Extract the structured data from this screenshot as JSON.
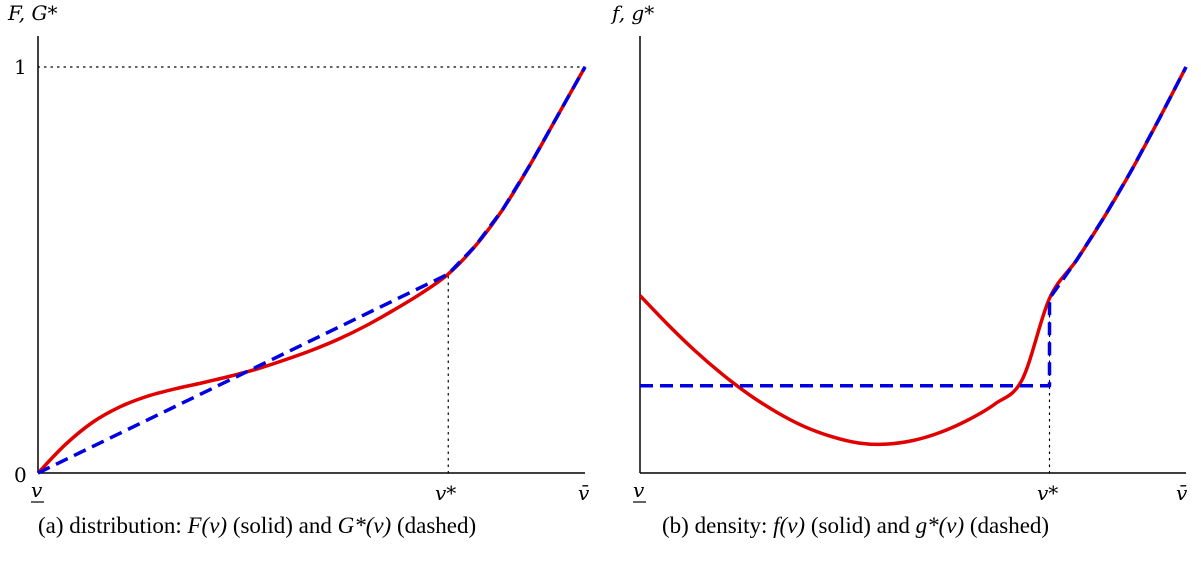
{
  "chart_data": [
    {
      "type": "line",
      "panel": "a",
      "ylabel": "F, G*",
      "x_tick_labels": [
        "v",
        "v*",
        "v̄"
      ],
      "y_tick_labels": [
        "0",
        "1"
      ],
      "xlim": [
        0,
        1
      ],
      "ylim": [
        0,
        1
      ],
      "v_star": 0.75,
      "reference_lines": [
        {
          "style": "dotted",
          "from": [
            0,
            1
          ],
          "to": [
            1,
            1
          ]
        },
        {
          "style": "dotted",
          "from": [
            0.75,
            0
          ],
          "to": [
            0.75,
            0.49
          ]
        }
      ],
      "series": [
        {
          "style": "solid",
          "color": "#e00000",
          "x": [
            0,
            0.05,
            0.1,
            0.15,
            0.2,
            0.25,
            0.3,
            0.35,
            0.4,
            0.45,
            0.5,
            0.55,
            0.6,
            0.65,
            0.7,
            0.75,
            0.8,
            0.85,
            0.9,
            0.95,
            1.0
          ],
          "y": [
            0,
            0.07,
            0.125,
            0.163,
            0.189,
            0.207,
            0.222,
            0.238,
            0.256,
            0.278,
            0.302,
            0.33,
            0.363,
            0.401,
            0.442,
            0.49,
            0.56,
            0.65,
            0.76,
            0.88,
            1.0
          ]
        },
        {
          "style": "dashed",
          "color": "#0000e0",
          "x": [
            0,
            0.75,
            0.8,
            0.85,
            0.9,
            0.95,
            1.0
          ],
          "y": [
            0,
            0.49,
            0.56,
            0.65,
            0.76,
            0.88,
            1.0
          ]
        }
      ]
    },
    {
      "type": "line",
      "panel": "b",
      "ylabel": "f, g*",
      "x_tick_labels": [
        "v",
        "v*",
        "v̄"
      ],
      "xlim": [
        0,
        1
      ],
      "ylim": [
        0,
        1
      ],
      "v_star": 0.75,
      "reference_lines": [
        {
          "style": "dotted",
          "from": [
            0.75,
            0
          ],
          "to": [
            0.75,
            0.43
          ]
        }
      ],
      "series": [
        {
          "style": "solid",
          "color": "#e00000",
          "x": [
            0,
            0.05,
            0.1,
            0.15,
            0.2,
            0.25,
            0.3,
            0.35,
            0.4,
            0.45,
            0.5,
            0.55,
            0.6,
            0.65,
            0.7,
            0.75,
            0.8,
            0.85,
            0.9,
            0.95,
            1.0
          ],
          "y": [
            0.437,
            0.367,
            0.302,
            0.244,
            0.193,
            0.15,
            0.115,
            0.09,
            0.074,
            0.071,
            0.08,
            0.1,
            0.13,
            0.17,
            0.23,
            0.43,
            0.525,
            0.63,
            0.745,
            0.87,
            1.0
          ]
        },
        {
          "style": "dashed",
          "color": "#0000e0",
          "x": [
            0,
            0.75,
            0.75,
            0.8,
            0.85,
            0.9,
            0.95,
            1.0
          ],
          "y": [
            0.215,
            0.215,
            0.43,
            0.525,
            0.63,
            0.745,
            0.87,
            1.0
          ]
        }
      ]
    }
  ],
  "captions": {
    "a": {
      "prefix": "(a) distribution: ",
      "m1": "F(v)",
      "mid": " (solid) and ",
      "m2": "G*(v)",
      "suffix": " (dashed)"
    },
    "b": {
      "prefix": "(b) density: ",
      "m1": "f(v)",
      "mid": " (solid) and ",
      "m2": "g*(v)",
      "suffix": " (dashed)"
    }
  }
}
